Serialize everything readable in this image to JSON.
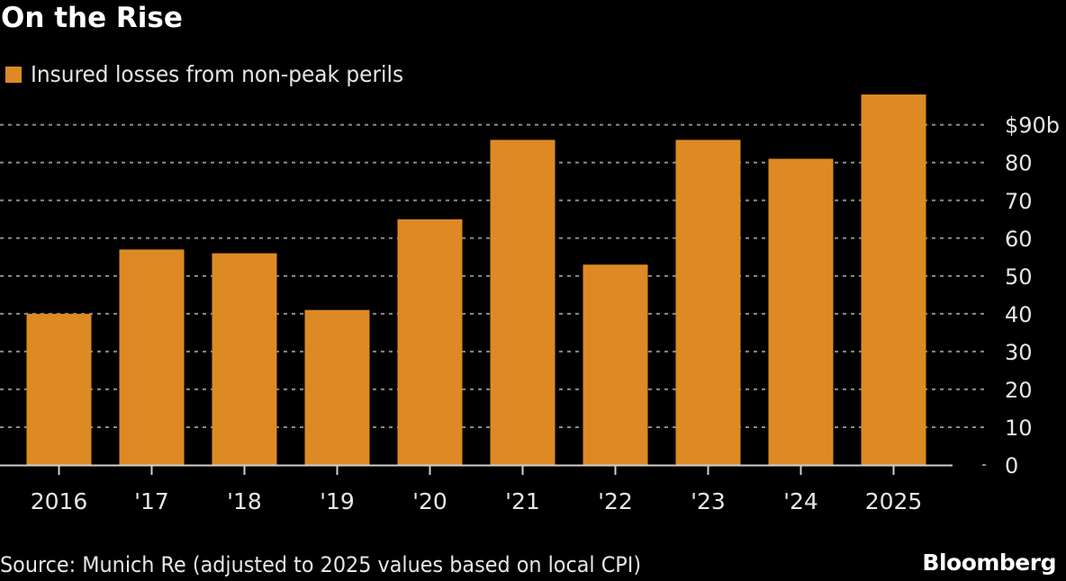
{
  "header": {
    "title": "On the Rise"
  },
  "footer": {
    "source": "Source: Munich Re (adjusted to 2025 values based on local CPI)",
    "brand": "Bloomberg"
  },
  "colors": {
    "background": "#000000",
    "bar": "#dd8a25",
    "grid": "#8a8a8a",
    "axis": "#d0d0d0",
    "text": "#e6e6e6"
  },
  "chart_data": {
    "type": "bar",
    "title": "On the Rise",
    "xlabel": "",
    "ylabel": "",
    "categories": [
      "2016",
      "'17",
      "'18",
      "'19",
      "'20",
      "'21",
      "'22",
      "'23",
      "'24",
      "2025"
    ],
    "series": [
      {
        "name": "Insured losses from non-peak perils",
        "values": [
          40,
          57,
          56,
          41,
          65,
          86,
          53,
          86,
          81,
          98
        ]
      }
    ],
    "ylim": [
      0,
      90
    ],
    "yticks": [
      0,
      10,
      20,
      30,
      40,
      50,
      60,
      70,
      80,
      90
    ],
    "ytick_labels": [
      "0",
      "10",
      "20",
      "30",
      "40",
      "50",
      "60",
      "70",
      "80",
      "$90b"
    ],
    "y_axis_side": "right",
    "grid": true,
    "grid_style": "dotted",
    "legend": {
      "position": "top-left",
      "entries": [
        "Insured losses from non-peak perils"
      ]
    },
    "unit": "$ billions"
  }
}
